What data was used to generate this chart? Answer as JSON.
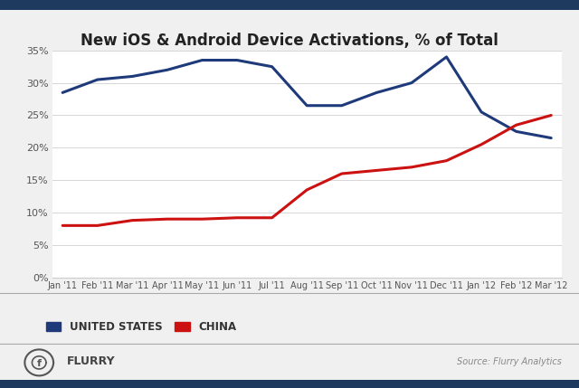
{
  "title": "New iOS & Android Device Activations, % of Total",
  "x_labels": [
    "Jan '11",
    "Feb '11",
    "Mar '11",
    "Apr '11",
    "May '11",
    "Jun '11",
    "Jul '11",
    "Aug '11",
    "Sep '11",
    "Oct '11",
    "Nov '11",
    "Dec '11",
    "Jan '12",
    "Feb '12",
    "Mar '12"
  ],
  "usa_values": [
    28.5,
    30.5,
    31.0,
    32.0,
    33.5,
    33.5,
    32.5,
    26.5,
    26.5,
    28.5,
    30.0,
    34.0,
    25.5,
    22.5,
    21.5
  ],
  "china_values": [
    8.0,
    8.0,
    8.8,
    9.0,
    9.0,
    9.2,
    9.2,
    13.5,
    16.0,
    16.5,
    17.0,
    18.0,
    20.5,
    23.5,
    25.0
  ],
  "usa_color": "#1f3a7a",
  "china_color": "#cc1111",
  "background_color": "#f0f0f0",
  "plot_bg_color": "#ffffff",
  "header_bar_color": "#1e3a5f",
  "footer_bar_color": "#1e3a5f",
  "ylim": [
    0,
    35
  ],
  "yticks": [
    0,
    5,
    10,
    15,
    20,
    25,
    30,
    35
  ],
  "ytick_labels": [
    "0%",
    "5%",
    "10%",
    "15%",
    "20%",
    "25%",
    "30%",
    "35%"
  ],
  "legend_usa": "UNITED STATES",
  "legend_china": "CHINA",
  "source_text": "Source: Flurry Analytics",
  "flurry_text": "FLURRY",
  "line_width": 2.2
}
